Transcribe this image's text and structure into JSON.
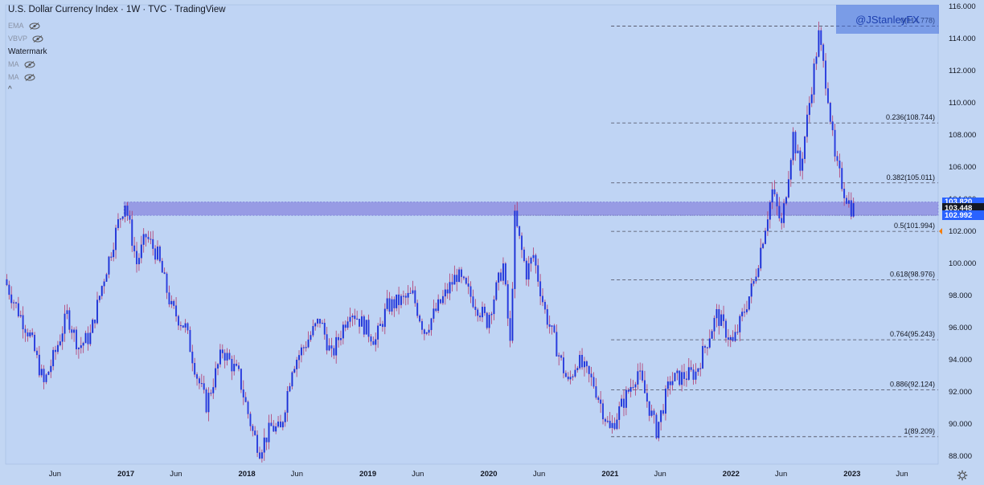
{
  "header": {
    "title": "U.S. Dollar Currency Index · 1W · TVC · TradingView",
    "indicators": [
      {
        "label": "EMA",
        "icon": "eye-hidden-icon",
        "dim": true
      },
      {
        "label": "VBVP",
        "icon": "eye-hidden-icon",
        "dim": true
      },
      {
        "label": "Watermark",
        "icon": "",
        "dim": false
      },
      {
        "label": "MA",
        "icon": "eye-hidden-icon",
        "dim": true
      },
      {
        "label": "MA",
        "icon": "eye-hidden-icon",
        "dim": true
      }
    ],
    "collapse_label": "^"
  },
  "watermark": {
    "text": "@JStanleyFX",
    "color": "#4a72dc"
  },
  "colors": {
    "background": "#c2d6f3",
    "candle": "#1a2fd6",
    "wick": "#b23a6f",
    "fib_line": "#4a4a5a",
    "zone": "#8f90e0",
    "tag_blue": "#2962ff",
    "tag_black": "#131722"
  },
  "price_tags": [
    {
      "value": 103.82,
      "label": "103.820",
      "color": "#2962ff"
    },
    {
      "value": 103.448,
      "label": "103.448",
      "color": "#131722"
    },
    {
      "value": 102.992,
      "label": "102.992",
      "color": "#2962ff"
    }
  ],
  "chart_data": {
    "type": "candlestick",
    "title": "U.S. Dollar Currency Index · 1W · TVC · TradingView",
    "interval": "1W",
    "ylim": [
      87.5,
      116.1
    ],
    "y_ticks": [
      88,
      90,
      92,
      94,
      96,
      98,
      100,
      102,
      104,
      106,
      108,
      110,
      112,
      114,
      116
    ],
    "y_tick_labels": [
      "88.000",
      "90.000",
      "92.000",
      "94.000",
      "96.000",
      "98.000",
      "100.000",
      "102.000",
      "104.000",
      "106.000",
      "108.000",
      "110.000",
      "112.000",
      "114.000",
      "116.000"
    ],
    "x_ticks": [
      "Jun",
      "2017",
      "Jun",
      "2018",
      "Jun",
      "2019",
      "Jun",
      "2020",
      "Jun",
      "2021",
      "Jun",
      "2022",
      "Jun",
      "2023",
      "Jun"
    ],
    "x_tick_dates": [
      "2016-06",
      "2017-01",
      "2017-06",
      "2018-01",
      "2018-06",
      "2019-01",
      "2019-06",
      "2020-01",
      "2020-06",
      "2021-01",
      "2021-06",
      "2022-01",
      "2022-06",
      "2023-01",
      "2023-06"
    ],
    "x_range": [
      "2016-01-04",
      "2023-09-18"
    ],
    "keypoints": [
      {
        "date": "2016-01-04",
        "value": 99.0
      },
      {
        "date": "2016-02-15",
        "value": 97.0
      },
      {
        "date": "2016-03-21",
        "value": 95.5
      },
      {
        "date": "2016-05-02",
        "value": 92.5
      },
      {
        "date": "2016-06-06",
        "value": 94.5
      },
      {
        "date": "2016-07-11",
        "value": 96.8
      },
      {
        "date": "2016-08-15",
        "value": 94.8
      },
      {
        "date": "2016-09-19",
        "value": 95.5
      },
      {
        "date": "2016-10-24",
        "value": 98.6
      },
      {
        "date": "2016-12-12",
        "value": 102.5
      },
      {
        "date": "2017-01-02",
        "value": 103.8
      },
      {
        "date": "2017-02-06",
        "value": 100.0
      },
      {
        "date": "2017-03-06",
        "value": 101.7
      },
      {
        "date": "2017-04-10",
        "value": 100.5
      },
      {
        "date": "2017-05-22",
        "value": 97.2
      },
      {
        "date": "2017-07-03",
        "value": 96.0
      },
      {
        "date": "2017-08-07",
        "value": 93.0
      },
      {
        "date": "2017-09-04",
        "value": 91.2
      },
      {
        "date": "2017-10-23",
        "value": 94.6
      },
      {
        "date": "2017-12-11",
        "value": 93.0
      },
      {
        "date": "2018-01-22",
        "value": 89.5
      },
      {
        "date": "2018-02-12",
        "value": 88.4
      },
      {
        "date": "2018-03-19",
        "value": 89.8
      },
      {
        "date": "2018-04-16",
        "value": 89.6
      },
      {
        "date": "2018-05-21",
        "value": 93.6
      },
      {
        "date": "2018-08-13",
        "value": 96.5
      },
      {
        "date": "2018-09-17",
        "value": 94.2
      },
      {
        "date": "2018-11-12",
        "value": 97.2
      },
      {
        "date": "2019-01-28",
        "value": 95.2
      },
      {
        "date": "2019-03-04",
        "value": 97.3
      },
      {
        "date": "2019-05-20",
        "value": 98.0
      },
      {
        "date": "2019-06-24",
        "value": 95.8
      },
      {
        "date": "2019-09-30",
        "value": 99.3
      },
      {
        "date": "2019-12-30",
        "value": 96.4
      },
      {
        "date": "2020-02-17",
        "value": 99.9
      },
      {
        "date": "2020-03-09",
        "value": 94.9
      },
      {
        "date": "2020-03-23",
        "value": 102.8
      },
      {
        "date": "2020-04-27",
        "value": 99.4
      },
      {
        "date": "2020-05-18",
        "value": 100.5
      },
      {
        "date": "2020-06-22",
        "value": 97.0
      },
      {
        "date": "2020-08-31",
        "value": 92.5
      },
      {
        "date": "2020-09-28",
        "value": 94.0
      },
      {
        "date": "2020-11-16",
        "value": 92.5
      },
      {
        "date": "2021-01-04",
        "value": 89.6
      },
      {
        "date": "2021-03-29",
        "value": 93.3
      },
      {
        "date": "2021-05-24",
        "value": 89.6
      },
      {
        "date": "2021-07-05",
        "value": 92.7
      },
      {
        "date": "2021-09-20",
        "value": 93.2
      },
      {
        "date": "2021-11-22",
        "value": 96.8
      },
      {
        "date": "2022-01-10",
        "value": 95.0
      },
      {
        "date": "2022-03-14",
        "value": 98.8
      },
      {
        "date": "2022-05-09",
        "value": 104.5
      },
      {
        "date": "2022-06-06",
        "value": 102.3
      },
      {
        "date": "2022-07-11",
        "value": 108.0
      },
      {
        "date": "2022-08-01",
        "value": 105.8
      },
      {
        "date": "2022-09-26",
        "value": 114.2
      },
      {
        "date": "2022-10-24",
        "value": 110.5
      },
      {
        "date": "2022-11-14",
        "value": 106.4
      },
      {
        "date": "2022-12-12",
        "value": 104.5
      },
      {
        "date": "2023-01-02",
        "value": 103.45
      }
    ],
    "fib_levels": [
      {
        "ratio": "1",
        "value": 89.209,
        "label": "1(89.209)"
      },
      {
        "ratio": "0.886",
        "value": 92.124,
        "label": "0.886(92.124)"
      },
      {
        "ratio": "0.764",
        "value": 95.243,
        "label": "0.764(95.243)"
      },
      {
        "ratio": "0.618",
        "value": 98.976,
        "label": "0.618(98.976)"
      },
      {
        "ratio": "0.5",
        "value": 101.994,
        "label": "0.5(101.994)"
      },
      {
        "ratio": "0.382",
        "value": 105.011,
        "label": "0.382(105.011)"
      },
      {
        "ratio": "0.236",
        "value": 108.744,
        "label": "0.236(108.744)"
      },
      {
        "ratio": "0",
        "value": 114.778,
        "label": "0(114.778)"
      }
    ],
    "fib_start_date": "2021-01-04",
    "zone": {
      "start_date": "2016-12-26",
      "upper": 103.82,
      "lower": 102.992
    },
    "dotted_line": {
      "start_date": "2020-03-23",
      "value": 102.992
    },
    "current_price": 103.448,
    "marker": {
      "value": 102.0,
      "color": "#f57c00"
    }
  }
}
